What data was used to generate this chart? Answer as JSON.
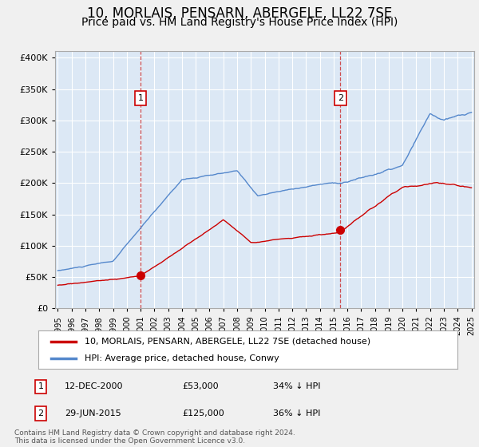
{
  "title": "10, MORLAIS, PENSARN, ABERGELE, LL22 7SE",
  "subtitle": "Price paid vs. HM Land Registry's House Price Index (HPI)",
  "legend_label_red": "10, MORLAIS, PENSARN, ABERGELE, LL22 7SE (detached house)",
  "legend_label_blue": "HPI: Average price, detached house, Conwy",
  "footer": "Contains HM Land Registry data © Crown copyright and database right 2024.\nThis data is licensed under the Open Government Licence v3.0.",
  "annotation1_date": "12-DEC-2000",
  "annotation1_price": "£53,000",
  "annotation1_hpi": "34% ↓ HPI",
  "annotation1_year": 2001.0,
  "annotation2_date": "29-JUN-2015",
  "annotation2_price": "£125,000",
  "annotation2_hpi": "36% ↓ HPI",
  "annotation2_year": 2015.5,
  "ylim": [
    0,
    410000
  ],
  "xlim": [
    1994.8,
    2025.2
  ],
  "yticks": [
    0,
    50000,
    100000,
    150000,
    200000,
    250000,
    300000,
    350000,
    400000
  ],
  "background_color": "#dce8f5",
  "plot_bg_color": "#dce8f5",
  "fig_bg_color": "#f0f0f0",
  "line_color_red": "#cc0000",
  "line_color_blue": "#5588cc",
  "grid_color": "#ffffff",
  "marker1_value": 53000,
  "marker2_value": 125000
}
